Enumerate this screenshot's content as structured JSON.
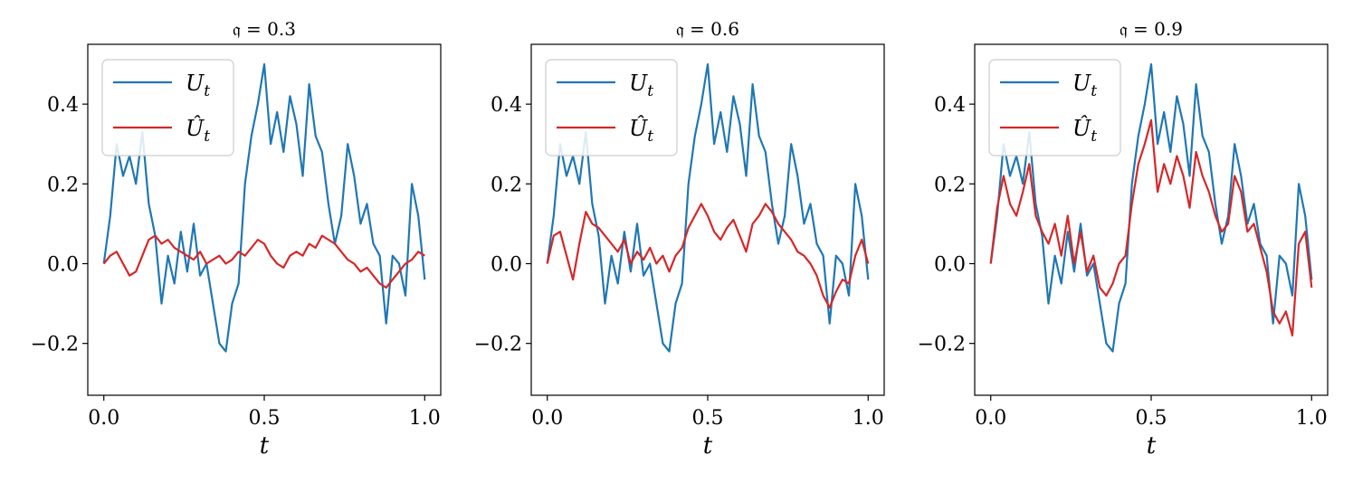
{
  "chart_data": [
    {
      "type": "line",
      "title": "𝔮 = 0.3",
      "xlabel": "t",
      "ylabel": "",
      "xlim": [
        -0.05,
        1.05
      ],
      "ylim": [
        -0.33,
        0.55
      ],
      "xticks": [
        0.0,
        0.5,
        1.0
      ],
      "xtick_labels": [
        "0.0",
        "0.5",
        "1.0"
      ],
      "yticks": [
        -0.2,
        0.0,
        0.2,
        0.4
      ],
      "ytick_labels": [
        "−0.2",
        "0.0",
        "0.2",
        "0.4"
      ],
      "legend": "top-left",
      "grid": false,
      "series": [
        {
          "name": "U",
          "name_sub": "t",
          "color": "#1f77b4",
          "x": [
            0.0,
            0.02,
            0.04,
            0.06,
            0.08,
            0.1,
            0.12,
            0.14,
            0.16,
            0.18,
            0.2,
            0.22,
            0.24,
            0.26,
            0.28,
            0.3,
            0.32,
            0.34,
            0.36,
            0.38,
            0.4,
            0.42,
            0.44,
            0.46,
            0.48,
            0.5,
            0.52,
            0.54,
            0.56,
            0.58,
            0.6,
            0.62,
            0.64,
            0.66,
            0.68,
            0.7,
            0.72,
            0.74,
            0.76,
            0.78,
            0.8,
            0.82,
            0.84,
            0.86,
            0.88,
            0.9,
            0.92,
            0.94,
            0.96,
            0.98,
            1.0
          ],
          "y": [
            0.0,
            0.12,
            0.3,
            0.22,
            0.27,
            0.2,
            0.33,
            0.15,
            0.07,
            -0.1,
            0.02,
            -0.05,
            0.08,
            -0.02,
            0.1,
            -0.03,
            0.0,
            -0.1,
            -0.2,
            -0.22,
            -0.1,
            -0.05,
            0.2,
            0.32,
            0.4,
            0.5,
            0.3,
            0.38,
            0.28,
            0.42,
            0.35,
            0.22,
            0.45,
            0.32,
            0.28,
            0.15,
            0.05,
            0.12,
            0.3,
            0.22,
            0.1,
            0.15,
            0.05,
            0.02,
            -0.15,
            0.02,
            0.0,
            -0.08,
            0.2,
            0.12,
            -0.04
          ]
        },
        {
          "name": "Û",
          "name_sub": "t",
          "color": "#d62728",
          "x": [
            0.0,
            0.02,
            0.04,
            0.06,
            0.08,
            0.1,
            0.12,
            0.14,
            0.16,
            0.18,
            0.2,
            0.22,
            0.24,
            0.26,
            0.28,
            0.3,
            0.32,
            0.34,
            0.36,
            0.38,
            0.4,
            0.42,
            0.44,
            0.46,
            0.48,
            0.5,
            0.52,
            0.54,
            0.56,
            0.58,
            0.6,
            0.62,
            0.64,
            0.66,
            0.68,
            0.7,
            0.72,
            0.74,
            0.76,
            0.78,
            0.8,
            0.82,
            0.84,
            0.86,
            0.88,
            0.9,
            0.92,
            0.94,
            0.96,
            0.98,
            1.0
          ],
          "y": [
            0.0,
            0.02,
            0.03,
            0.0,
            -0.03,
            -0.02,
            0.02,
            0.06,
            0.07,
            0.05,
            0.06,
            0.04,
            0.03,
            0.02,
            0.01,
            0.03,
            0.0,
            0.01,
            0.02,
            0.0,
            0.01,
            0.03,
            0.02,
            0.04,
            0.06,
            0.05,
            0.02,
            0.0,
            -0.01,
            0.02,
            0.03,
            0.02,
            0.05,
            0.04,
            0.07,
            0.06,
            0.05,
            0.03,
            0.01,
            0.0,
            -0.02,
            -0.01,
            -0.03,
            -0.05,
            -0.06,
            -0.04,
            -0.02,
            0.0,
            0.01,
            0.03,
            0.02
          ]
        }
      ]
    },
    {
      "type": "line",
      "title": "𝔮 = 0.6",
      "xlabel": "t",
      "ylabel": "",
      "xlim": [
        -0.05,
        1.05
      ],
      "ylim": [
        -0.33,
        0.55
      ],
      "xticks": [
        0.0,
        0.5,
        1.0
      ],
      "xtick_labels": [
        "0.0",
        "0.5",
        "1.0"
      ],
      "yticks": [
        -0.2,
        0.0,
        0.2,
        0.4
      ],
      "ytick_labels": [
        "−0.2",
        "0.0",
        "0.2",
        "0.4"
      ],
      "legend": "top-left",
      "grid": false,
      "series": [
        {
          "name": "U",
          "name_sub": "t",
          "color": "#1f77b4",
          "x": [
            0.0,
            0.02,
            0.04,
            0.06,
            0.08,
            0.1,
            0.12,
            0.14,
            0.16,
            0.18,
            0.2,
            0.22,
            0.24,
            0.26,
            0.28,
            0.3,
            0.32,
            0.34,
            0.36,
            0.38,
            0.4,
            0.42,
            0.44,
            0.46,
            0.48,
            0.5,
            0.52,
            0.54,
            0.56,
            0.58,
            0.6,
            0.62,
            0.64,
            0.66,
            0.68,
            0.7,
            0.72,
            0.74,
            0.76,
            0.78,
            0.8,
            0.82,
            0.84,
            0.86,
            0.88,
            0.9,
            0.92,
            0.94,
            0.96,
            0.98,
            1.0
          ],
          "y": [
            0.0,
            0.12,
            0.3,
            0.22,
            0.27,
            0.2,
            0.33,
            0.15,
            0.07,
            -0.1,
            0.02,
            -0.05,
            0.08,
            -0.02,
            0.1,
            -0.03,
            0.0,
            -0.1,
            -0.2,
            -0.22,
            -0.1,
            -0.05,
            0.2,
            0.32,
            0.4,
            0.5,
            0.3,
            0.38,
            0.28,
            0.42,
            0.35,
            0.22,
            0.45,
            0.32,
            0.28,
            0.15,
            0.05,
            0.12,
            0.3,
            0.22,
            0.1,
            0.15,
            0.05,
            0.02,
            -0.15,
            0.02,
            0.0,
            -0.08,
            0.2,
            0.12,
            -0.04
          ]
        },
        {
          "name": "Û",
          "name_sub": "t",
          "color": "#d62728",
          "x": [
            0.0,
            0.02,
            0.04,
            0.06,
            0.08,
            0.1,
            0.12,
            0.14,
            0.16,
            0.18,
            0.2,
            0.22,
            0.24,
            0.26,
            0.28,
            0.3,
            0.32,
            0.34,
            0.36,
            0.38,
            0.4,
            0.42,
            0.44,
            0.46,
            0.48,
            0.5,
            0.52,
            0.54,
            0.56,
            0.58,
            0.6,
            0.62,
            0.64,
            0.66,
            0.68,
            0.7,
            0.72,
            0.74,
            0.76,
            0.78,
            0.8,
            0.82,
            0.84,
            0.86,
            0.88,
            0.9,
            0.92,
            0.94,
            0.96,
            0.98,
            1.0
          ],
          "y": [
            0.0,
            0.07,
            0.08,
            0.02,
            -0.04,
            0.05,
            0.13,
            0.1,
            0.09,
            0.07,
            0.05,
            0.03,
            0.06,
            0.0,
            0.03,
            0.01,
            0.04,
            0.0,
            0.02,
            -0.02,
            0.02,
            0.04,
            0.09,
            0.12,
            0.15,
            0.12,
            0.08,
            0.06,
            0.09,
            0.11,
            0.07,
            0.03,
            0.1,
            0.12,
            0.15,
            0.13,
            0.1,
            0.08,
            0.06,
            0.03,
            0.02,
            0.0,
            -0.03,
            -0.08,
            -0.11,
            -0.07,
            -0.04,
            -0.05,
            0.02,
            0.06,
            0.0
          ]
        }
      ]
    },
    {
      "type": "line",
      "title": "𝔮 = 0.9",
      "xlabel": "t",
      "ylabel": "",
      "xlim": [
        -0.05,
        1.05
      ],
      "ylim": [
        -0.33,
        0.55
      ],
      "xticks": [
        0.0,
        0.5,
        1.0
      ],
      "xtick_labels": [
        "0.0",
        "0.5",
        "1.0"
      ],
      "yticks": [
        -0.2,
        0.0,
        0.2,
        0.4
      ],
      "ytick_labels": [
        "−0.2",
        "0.0",
        "0.2",
        "0.4"
      ],
      "legend": "top-left",
      "grid": false,
      "series": [
        {
          "name": "U",
          "name_sub": "t",
          "color": "#1f77b4",
          "x": [
            0.0,
            0.02,
            0.04,
            0.06,
            0.08,
            0.1,
            0.12,
            0.14,
            0.16,
            0.18,
            0.2,
            0.22,
            0.24,
            0.26,
            0.28,
            0.3,
            0.32,
            0.34,
            0.36,
            0.38,
            0.4,
            0.42,
            0.44,
            0.46,
            0.48,
            0.5,
            0.52,
            0.54,
            0.56,
            0.58,
            0.6,
            0.62,
            0.64,
            0.66,
            0.68,
            0.7,
            0.72,
            0.74,
            0.76,
            0.78,
            0.8,
            0.82,
            0.84,
            0.86,
            0.88,
            0.9,
            0.92,
            0.94,
            0.96,
            0.98,
            1.0
          ],
          "y": [
            0.0,
            0.12,
            0.3,
            0.22,
            0.27,
            0.2,
            0.33,
            0.15,
            0.07,
            -0.1,
            0.02,
            -0.05,
            0.08,
            -0.02,
            0.1,
            -0.03,
            0.0,
            -0.1,
            -0.2,
            -0.22,
            -0.1,
            -0.05,
            0.2,
            0.32,
            0.4,
            0.5,
            0.3,
            0.38,
            0.28,
            0.42,
            0.35,
            0.22,
            0.45,
            0.32,
            0.28,
            0.15,
            0.05,
            0.12,
            0.3,
            0.22,
            0.1,
            0.15,
            0.05,
            0.02,
            -0.15,
            0.02,
            0.0,
            -0.08,
            0.2,
            0.12,
            -0.04
          ]
        },
        {
          "name": "Û",
          "name_sub": "t",
          "color": "#d62728",
          "x": [
            0.0,
            0.02,
            0.04,
            0.06,
            0.08,
            0.1,
            0.12,
            0.14,
            0.16,
            0.18,
            0.2,
            0.22,
            0.24,
            0.26,
            0.28,
            0.3,
            0.32,
            0.34,
            0.36,
            0.38,
            0.4,
            0.42,
            0.44,
            0.46,
            0.48,
            0.5,
            0.52,
            0.54,
            0.56,
            0.58,
            0.6,
            0.62,
            0.64,
            0.66,
            0.68,
            0.7,
            0.72,
            0.74,
            0.76,
            0.78,
            0.8,
            0.82,
            0.84,
            0.86,
            0.88,
            0.9,
            0.92,
            0.94,
            0.96,
            0.98,
            1.0
          ],
          "y": [
            0.0,
            0.14,
            0.22,
            0.15,
            0.12,
            0.18,
            0.25,
            0.12,
            0.08,
            0.05,
            0.1,
            0.02,
            0.12,
            0.0,
            0.08,
            -0.02,
            0.02,
            -0.06,
            -0.08,
            -0.05,
            0.0,
            0.02,
            0.15,
            0.25,
            0.3,
            0.36,
            0.18,
            0.25,
            0.2,
            0.27,
            0.22,
            0.14,
            0.28,
            0.22,
            0.18,
            0.12,
            0.08,
            0.1,
            0.22,
            0.18,
            0.08,
            0.1,
            0.04,
            -0.02,
            -0.12,
            -0.15,
            -0.12,
            -0.18,
            0.05,
            0.08,
            -0.06
          ]
        }
      ]
    }
  ]
}
